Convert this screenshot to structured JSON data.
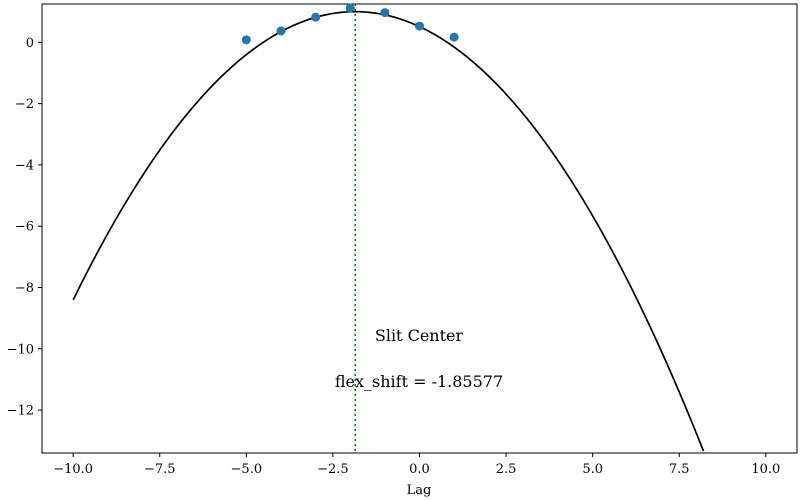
{
  "chart_data": {
    "type": "scatter",
    "title": "",
    "xlabel": "Lag",
    "ylabel": "",
    "xlim": [
      -10.9,
      10.9
    ],
    "ylim": [
      -13.4,
      1.25
    ],
    "grid": false,
    "x_ticks": [
      -10.0,
      -7.5,
      -5.0,
      -2.5,
      0.0,
      2.5,
      5.0,
      7.5,
      10.0
    ],
    "x_tick_labels": [
      "−10.0",
      "−7.5",
      "−5.0",
      "−2.5",
      "0.0",
      "2.5",
      "5.0",
      "7.5",
      "10.0"
    ],
    "y_ticks": [
      0,
      -2,
      -4,
      -6,
      -8,
      -10,
      -12
    ],
    "y_tick_labels": [
      "0",
      "−2",
      "−4",
      "−6",
      "−8",
      "−10",
      "−12"
    ],
    "points": {
      "x": [
        -5,
        -4,
        -3,
        -2,
        -1,
        0,
        1
      ],
      "y": [
        0.08,
        0.37,
        0.82,
        1.12,
        0.97,
        0.53,
        0.17
      ],
      "color": "#1f77b4"
    },
    "fit_curve": {
      "formula": "1 - 0.1418*(x - -1.85577)^2",
      "x_range": [
        -10,
        10
      ],
      "vertex_x": -1.85577,
      "vertex_y": 1.0,
      "a": -0.1418,
      "color": "#000000"
    },
    "vline": {
      "x": -1.85577,
      "color": "#008000",
      "style": "dotted"
    },
    "annotations": [
      {
        "text": "Slit Center"
      },
      {
        "text": "flex_shift = -1.85577"
      }
    ]
  }
}
